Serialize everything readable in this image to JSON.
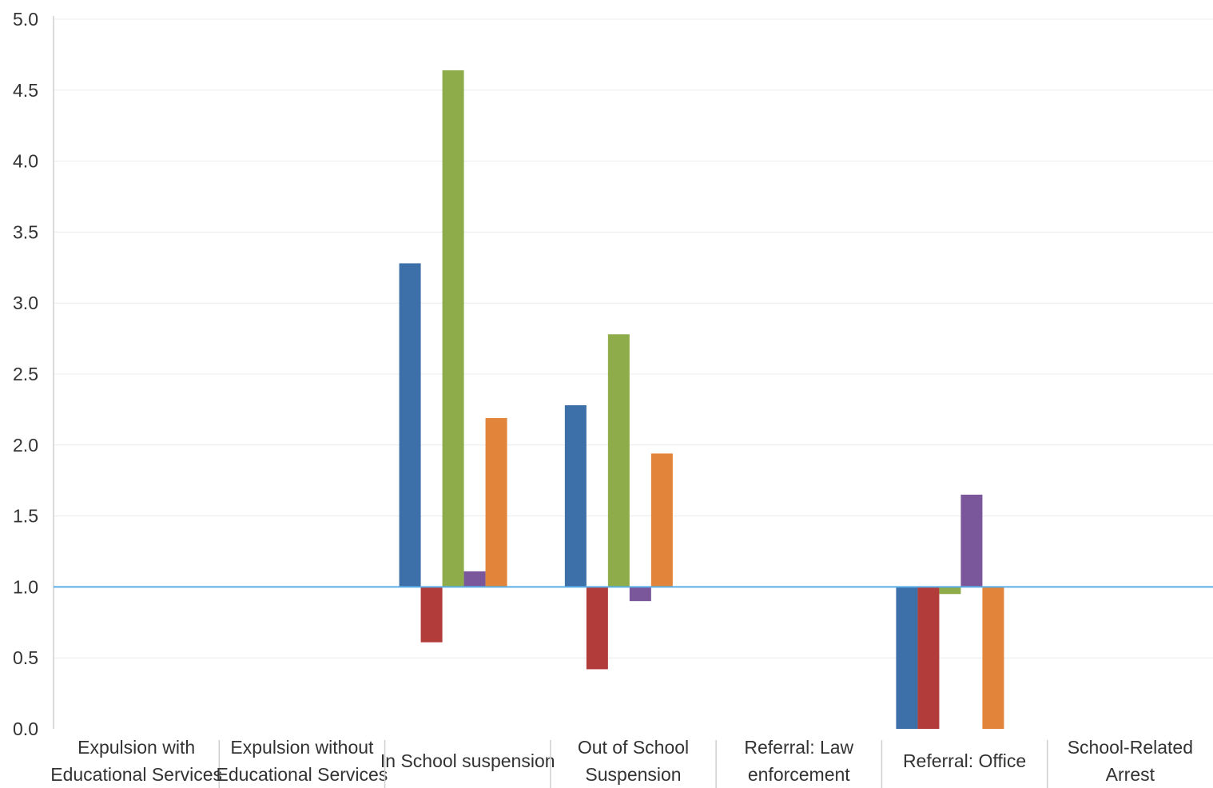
{
  "chart_data": {
    "type": "bar",
    "categories": [
      [
        "Expulsion with",
        "Educational Services"
      ],
      [
        "Expulsion without",
        "Educational Services"
      ],
      [
        "In School suspension"
      ],
      [
        "Out of School",
        "Suspension"
      ],
      [
        "Referral: Law",
        "enforcement"
      ],
      [
        "Referral: Office"
      ],
      [
        "School-Related",
        "Arrest"
      ]
    ],
    "series": [
      {
        "color": "#3d6fa8",
        "values": [
          1.0,
          1.0,
          3.28,
          2.28,
          1.0,
          0.0,
          1.0
        ]
      },
      {
        "color": "#b23c3a",
        "values": [
          1.0,
          1.0,
          0.61,
          0.42,
          1.0,
          0.0,
          1.0
        ]
      },
      {
        "color": "#8ead4a",
        "values": [
          1.0,
          1.0,
          4.64,
          2.78,
          1.0,
          0.95,
          1.0
        ]
      },
      {
        "color": "#7a569b",
        "values": [
          1.0,
          1.0,
          1.11,
          0.9,
          1.0,
          1.65,
          1.0
        ]
      },
      {
        "color": "#e2853a",
        "values": [
          1.0,
          1.0,
          2.19,
          1.94,
          1.0,
          0.0,
          1.0
        ]
      }
    ],
    "baseline": 1.0,
    "baseline_color": "#5aaee6",
    "ylim": [
      0,
      5.0
    ],
    "yticks": [
      "0.0",
      "0.5",
      "1.0",
      "1.5",
      "2.0",
      "2.5",
      "3.0",
      "3.5",
      "4.0",
      "4.5",
      "5.0"
    ],
    "title": "",
    "xlabel": "",
    "ylabel": "",
    "grid": true
  }
}
